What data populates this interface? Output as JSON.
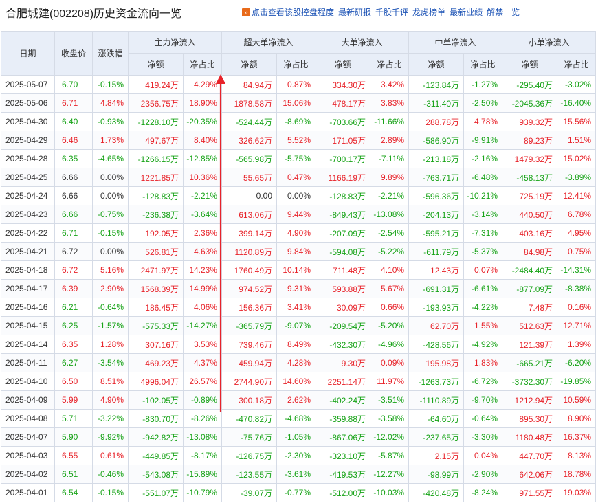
{
  "header": {
    "title": "合肥城建(002208)历史资金流向一览",
    "links": [
      "点击查看该股控盘程度",
      "最新研报",
      "千股千评",
      "龙虎榜单",
      "最新业绩",
      "解禁一览"
    ]
  },
  "colors": {
    "up": "#e8232a",
    "down": "#17a317",
    "arrow": "#e8232a",
    "header_bg": "#e8eef8"
  },
  "table": {
    "headers": {
      "date": "日期",
      "close": "收盘价",
      "change": "涨跌幅",
      "groups": [
        "主力净流入",
        "超大单净流入",
        "大单净流入",
        "中单净流入",
        "小单净流入"
      ],
      "sub_amount": "净额",
      "sub_ratio": "净占比"
    },
    "rows": [
      {
        "date": "2025-05-07",
        "close": "6.70",
        "change": "-0.15%",
        "main": "419.24万",
        "main_pct": "4.29%",
        "xl": "84.94万",
        "xl_pct": "0.87%",
        "l": "334.30万",
        "l_pct": "3.42%",
        "m": "-123.84万",
        "m_pct": "-1.27%",
        "s": "-295.40万",
        "s_pct": "-3.02%"
      },
      {
        "date": "2025-05-06",
        "close": "6.71",
        "change": "4.84%",
        "main": "2356.75万",
        "main_pct": "18.90%",
        "xl": "1878.58万",
        "xl_pct": "15.06%",
        "l": "478.17万",
        "l_pct": "3.83%",
        "m": "-311.40万",
        "m_pct": "-2.50%",
        "s": "-2045.36万",
        "s_pct": "-16.40%"
      },
      {
        "date": "2025-04-30",
        "close": "6.40",
        "change": "-0.93%",
        "main": "-1228.10万",
        "main_pct": "-20.35%",
        "xl": "-524.44万",
        "xl_pct": "-8.69%",
        "l": "-703.66万",
        "l_pct": "-11.66%",
        "m": "288.78万",
        "m_pct": "4.78%",
        "s": "939.32万",
        "s_pct": "15.56%"
      },
      {
        "date": "2025-04-29",
        "close": "6.46",
        "change": "1.73%",
        "main": "497.67万",
        "main_pct": "8.40%",
        "xl": "326.62万",
        "xl_pct": "5.52%",
        "l": "171.05万",
        "l_pct": "2.89%",
        "m": "-586.90万",
        "m_pct": "-9.91%",
        "s": "89.23万",
        "s_pct": "1.51%"
      },
      {
        "date": "2025-04-28",
        "close": "6.35",
        "change": "-4.65%",
        "main": "-1266.15万",
        "main_pct": "-12.85%",
        "xl": "-565.98万",
        "xl_pct": "-5.75%",
        "l": "-700.17万",
        "l_pct": "-7.11%",
        "m": "-213.18万",
        "m_pct": "-2.16%",
        "s": "1479.32万",
        "s_pct": "15.02%"
      },
      {
        "date": "2025-04-25",
        "close": "6.66",
        "change": "0.00%",
        "main": "1221.85万",
        "main_pct": "10.36%",
        "xl": "55.65万",
        "xl_pct": "0.47%",
        "l": "1166.19万",
        "l_pct": "9.89%",
        "m": "-763.71万",
        "m_pct": "-6.48%",
        "s": "-458.13万",
        "s_pct": "-3.89%"
      },
      {
        "date": "2025-04-24",
        "close": "6.66",
        "change": "0.00%",
        "main": "-128.83万",
        "main_pct": "-2.21%",
        "xl": "0.00",
        "xl_pct": "0.00%",
        "l": "-128.83万",
        "l_pct": "-2.21%",
        "m": "-596.36万",
        "m_pct": "-10.21%",
        "s": "725.19万",
        "s_pct": "12.41%"
      },
      {
        "date": "2025-04-23",
        "close": "6.66",
        "change": "-0.75%",
        "main": "-236.38万",
        "main_pct": "-3.64%",
        "xl": "613.06万",
        "xl_pct": "9.44%",
        "l": "-849.43万",
        "l_pct": "-13.08%",
        "m": "-204.13万",
        "m_pct": "-3.14%",
        "s": "440.50万",
        "s_pct": "6.78%"
      },
      {
        "date": "2025-04-22",
        "close": "6.71",
        "change": "-0.15%",
        "main": "192.05万",
        "main_pct": "2.36%",
        "xl": "399.14万",
        "xl_pct": "4.90%",
        "l": "-207.09万",
        "l_pct": "-2.54%",
        "m": "-595.21万",
        "m_pct": "-7.31%",
        "s": "403.16万",
        "s_pct": "4.95%"
      },
      {
        "date": "2025-04-21",
        "close": "6.72",
        "change": "0.00%",
        "main": "526.81万",
        "main_pct": "4.63%",
        "xl": "1120.89万",
        "xl_pct": "9.84%",
        "l": "-594.08万",
        "l_pct": "-5.22%",
        "m": "-611.79万",
        "m_pct": "-5.37%",
        "s": "84.98万",
        "s_pct": "0.75%"
      },
      {
        "date": "2025-04-18",
        "close": "6.72",
        "change": "5.16%",
        "main": "2471.97万",
        "main_pct": "14.23%",
        "xl": "1760.49万",
        "xl_pct": "10.14%",
        "l": "711.48万",
        "l_pct": "4.10%",
        "m": "12.43万",
        "m_pct": "0.07%",
        "s": "-2484.40万",
        "s_pct": "-14.31%"
      },
      {
        "date": "2025-04-17",
        "close": "6.39",
        "change": "2.90%",
        "main": "1568.39万",
        "main_pct": "14.99%",
        "xl": "974.52万",
        "xl_pct": "9.31%",
        "l": "593.88万",
        "l_pct": "5.67%",
        "m": "-691.31万",
        "m_pct": "-6.61%",
        "s": "-877.09万",
        "s_pct": "-8.38%"
      },
      {
        "date": "2025-04-16",
        "close": "6.21",
        "change": "-0.64%",
        "main": "186.45万",
        "main_pct": "4.06%",
        "xl": "156.36万",
        "xl_pct": "3.41%",
        "l": "30.09万",
        "l_pct": "0.66%",
        "m": "-193.93万",
        "m_pct": "-4.22%",
        "s": "7.48万",
        "s_pct": "0.16%"
      },
      {
        "date": "2025-04-15",
        "close": "6.25",
        "change": "-1.57%",
        "main": "-575.33万",
        "main_pct": "-14.27%",
        "xl": "-365.79万",
        "xl_pct": "-9.07%",
        "l": "-209.54万",
        "l_pct": "-5.20%",
        "m": "62.70万",
        "m_pct": "1.55%",
        "s": "512.63万",
        "s_pct": "12.71%"
      },
      {
        "date": "2025-04-14",
        "close": "6.35",
        "change": "1.28%",
        "main": "307.16万",
        "main_pct": "3.53%",
        "xl": "739.46万",
        "xl_pct": "8.49%",
        "l": "-432.30万",
        "l_pct": "-4.96%",
        "m": "-428.56万",
        "m_pct": "-4.92%",
        "s": "121.39万",
        "s_pct": "1.39%"
      },
      {
        "date": "2025-04-11",
        "close": "6.27",
        "change": "-3.54%",
        "main": "469.23万",
        "main_pct": "4.37%",
        "xl": "459.94万",
        "xl_pct": "4.28%",
        "l": "9.30万",
        "l_pct": "0.09%",
        "m": "195.98万",
        "m_pct": "1.83%",
        "s": "-665.21万",
        "s_pct": "-6.20%"
      },
      {
        "date": "2025-04-10",
        "close": "6.50",
        "change": "8.51%",
        "main": "4996.04万",
        "main_pct": "26.57%",
        "xl": "2744.90万",
        "xl_pct": "14.60%",
        "l": "2251.14万",
        "l_pct": "11.97%",
        "m": "-1263.73万",
        "m_pct": "-6.72%",
        "s": "-3732.30万",
        "s_pct": "-19.85%"
      },
      {
        "date": "2025-04-09",
        "close": "5.99",
        "change": "4.90%",
        "main": "-102.05万",
        "main_pct": "-0.89%",
        "xl": "300.18万",
        "xl_pct": "2.62%",
        "l": "-402.24万",
        "l_pct": "-3.51%",
        "m": "-1110.89万",
        "m_pct": "-9.70%",
        "s": "1212.94万",
        "s_pct": "10.59%"
      },
      {
        "date": "2025-04-08",
        "close": "5.71",
        "change": "-3.22%",
        "main": "-830.70万",
        "main_pct": "-8.26%",
        "xl": "-470.82万",
        "xl_pct": "-4.68%",
        "l": "-359.88万",
        "l_pct": "-3.58%",
        "m": "-64.60万",
        "m_pct": "-0.64%",
        "s": "895.30万",
        "s_pct": "8.90%"
      },
      {
        "date": "2025-04-07",
        "close": "5.90",
        "change": "-9.92%",
        "main": "-942.82万",
        "main_pct": "-13.08%",
        "xl": "-75.76万",
        "xl_pct": "-1.05%",
        "l": "-867.06万",
        "l_pct": "-12.02%",
        "m": "-237.65万",
        "m_pct": "-3.30%",
        "s": "1180.48万",
        "s_pct": "16.37%"
      },
      {
        "date": "2025-04-03",
        "close": "6.55",
        "change": "0.61%",
        "main": "-449.85万",
        "main_pct": "-8.17%",
        "xl": "-126.75万",
        "xl_pct": "-2.30%",
        "l": "-323.10万",
        "l_pct": "-5.87%",
        "m": "2.15万",
        "m_pct": "0.04%",
        "s": "447.70万",
        "s_pct": "8.13%"
      },
      {
        "date": "2025-04-02",
        "close": "6.51",
        "change": "-0.46%",
        "main": "-543.08万",
        "main_pct": "-15.89%",
        "xl": "-123.55万",
        "xl_pct": "-3.61%",
        "l": "-419.53万",
        "l_pct": "-12.27%",
        "m": "-98.99万",
        "m_pct": "-2.90%",
        "s": "642.06万",
        "s_pct": "18.78%"
      },
      {
        "date": "2025-04-01",
        "close": "6.54",
        "change": "-0.15%",
        "main": "-551.07万",
        "main_pct": "-10.79%",
        "xl": "-39.07万",
        "xl_pct": "-0.77%",
        "l": "-512.00万",
        "l_pct": "-10.03%",
        "m": "-420.48万",
        "m_pct": "-8.24%",
        "s": "971.55万",
        "s_pct": "19.03%"
      }
    ]
  }
}
